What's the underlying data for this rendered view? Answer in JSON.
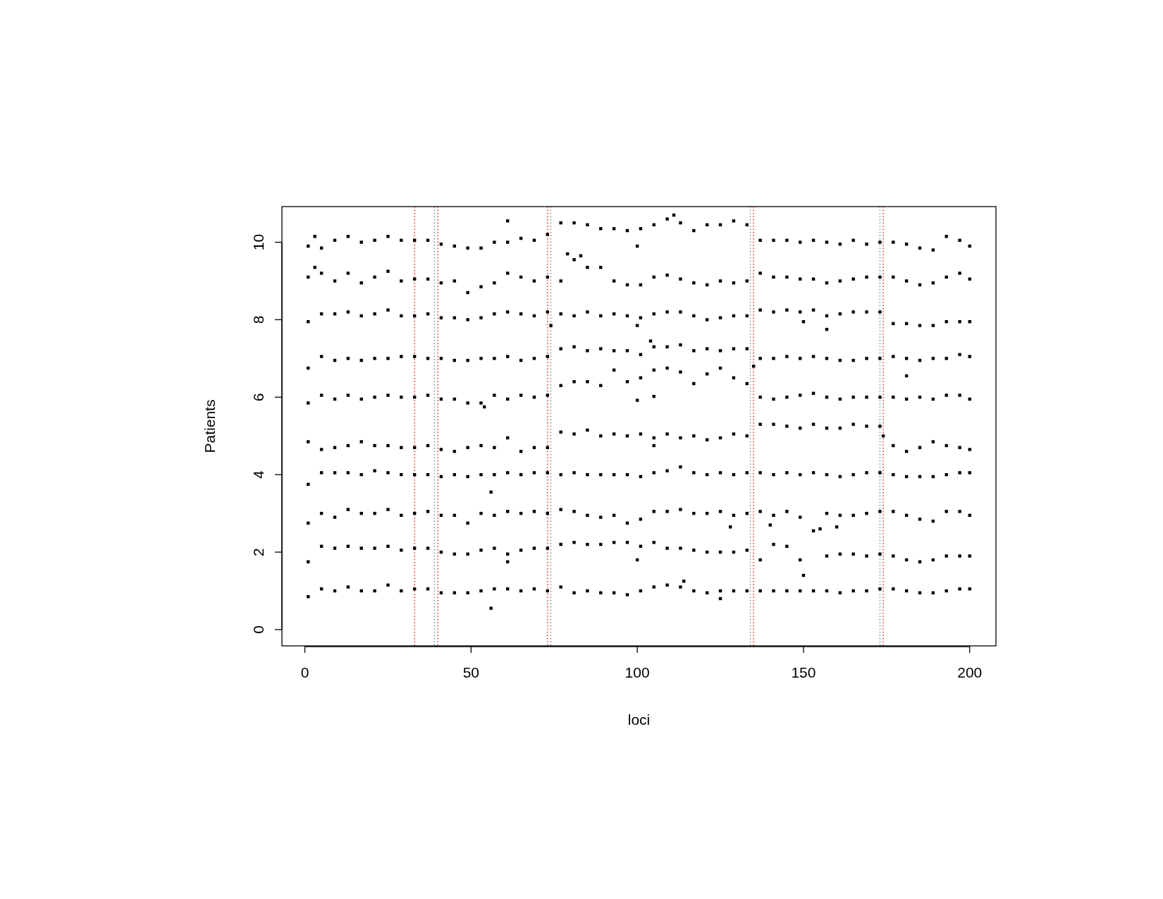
{
  "chart_data": {
    "type": "scatter",
    "xlabel": "loci",
    "ylabel": "Patients",
    "x": [
      1,
      5,
      9,
      13,
      17,
      21,
      25,
      29,
      33,
      37,
      41,
      45,
      49,
      53,
      57,
      61,
      65,
      69,
      73,
      77,
      81,
      85,
      89,
      93,
      97,
      101,
      105,
      109,
      113,
      117,
      121,
      125,
      129,
      133,
      137,
      141,
      145,
      149,
      153,
      157,
      161,
      165,
      169,
      173,
      177,
      181,
      185,
      189,
      193,
      197,
      200
    ],
    "series": [
      {
        "color": "#000000",
        "values": [
          9.9,
          9.85,
          10.05,
          10.15,
          10.0,
          10.05,
          10.15,
          10.05,
          10.05,
          10.05,
          9.95,
          9.9,
          9.85,
          9.85,
          10.0,
          10.0,
          10.1,
          10.05,
          10.2,
          10.5,
          10.5,
          10.45,
          10.35,
          10.35,
          10.3,
          10.35,
          10.45,
          10.6,
          10.5,
          10.3,
          10.45,
          10.45,
          10.55,
          10.45,
          10.05,
          10.05,
          10.05,
          10.0,
          10.05,
          10.0,
          9.95,
          10.05,
          9.95,
          10.0,
          10.0,
          9.95,
          9.85,
          9.8,
          10.15,
          10.05,
          9.9
        ]
      },
      {
        "color": "#000000",
        "values": [
          9.1,
          9.2,
          9.0,
          9.2,
          8.95,
          9.1,
          9.25,
          9.0,
          9.05,
          9.05,
          8.95,
          9.0,
          8.7,
          8.85,
          8.95,
          9.2,
          9.1,
          9.0,
          9.1,
          9.0,
          9.55,
          9.35,
          9.35,
          9.0,
          8.9,
          8.9,
          9.1,
          9.15,
          9.05,
          8.95,
          8.9,
          9.0,
          8.95,
          9.0,
          9.2,
          9.1,
          9.1,
          9.05,
          9.05,
          8.95,
          9.0,
          9.05,
          9.1,
          9.1,
          9.1,
          9.0,
          8.9,
          8.95,
          9.1,
          9.2,
          9.05
        ]
      },
      {
        "color": "#000000",
        "values": [
          7.95,
          8.15,
          8.15,
          8.2,
          8.1,
          8.15,
          8.25,
          8.1,
          8.1,
          8.15,
          8.05,
          8.05,
          8.0,
          8.05,
          8.15,
          8.2,
          8.15,
          8.1,
          8.2,
          8.15,
          8.1,
          8.2,
          8.1,
          8.15,
          8.1,
          8.05,
          8.15,
          8.2,
          8.2,
          8.1,
          8.0,
          8.05,
          8.1,
          8.1,
          8.25,
          8.2,
          8.25,
          8.2,
          8.25,
          8.1,
          8.15,
          8.2,
          8.2,
          8.2,
          7.9,
          7.9,
          7.85,
          7.85,
          7.95,
          7.95,
          7.95
        ]
      },
      {
        "color": "#000000",
        "values": [
          6.75,
          7.05,
          6.95,
          7.0,
          6.95,
          7.0,
          7.0,
          7.05,
          7.05,
          7.0,
          7.0,
          6.95,
          6.95,
          7.0,
          7.0,
          7.05,
          6.95,
          7.0,
          7.05,
          7.25,
          7.3,
          7.2,
          7.25,
          7.2,
          7.2,
          7.1,
          7.3,
          7.3,
          7.35,
          7.2,
          7.25,
          7.2,
          7.25,
          7.25,
          7.0,
          7.0,
          7.05,
          7.0,
          7.05,
          7.0,
          6.95,
          6.95,
          7.0,
          7.0,
          7.05,
          7.0,
          6.95,
          7.0,
          7.0,
          7.1,
          7.05
        ]
      },
      {
        "color": "#000000",
        "values": [
          5.85,
          6.05,
          5.95,
          6.05,
          5.95,
          6.0,
          6.05,
          6.0,
          6.0,
          6.05,
          5.95,
          5.95,
          5.85,
          5.85,
          6.05,
          5.95,
          6.05,
          6.0,
          6.05,
          6.3,
          6.4,
          6.4,
          6.3,
          6.7,
          6.4,
          6.5,
          6.7,
          6.75,
          6.65,
          6.35,
          6.6,
          6.75,
          6.5,
          6.35,
          6.0,
          5.95,
          6.0,
          6.05,
          6.1,
          6.0,
          5.95,
          6.0,
          6.0,
          6.0,
          6.0,
          5.95,
          6.0,
          5.95,
          6.05,
          6.05,
          5.95
        ]
      },
      {
        "color": "#000000",
        "values": [
          4.85,
          4.65,
          4.7,
          4.75,
          4.85,
          4.75,
          4.75,
          4.7,
          4.7,
          4.75,
          4.65,
          4.6,
          4.7,
          4.75,
          4.7,
          4.95,
          4.6,
          4.7,
          4.7,
          5.1,
          5.05,
          5.15,
          5.0,
          5.05,
          5.0,
          5.05,
          4.95,
          5.05,
          4.95,
          5.0,
          4.9,
          4.95,
          5.05,
          5.0,
          5.3,
          5.3,
          5.25,
          5.2,
          5.3,
          5.2,
          5.2,
          5.3,
          5.25,
          5.25,
          4.75,
          4.6,
          4.7,
          4.85,
          4.75,
          4.7,
          4.65
        ]
      },
      {
        "color": "#000000",
        "values": [
          3.75,
          4.05,
          4.05,
          4.05,
          4.0,
          4.1,
          4.05,
          4.0,
          4.0,
          4.0,
          3.95,
          4.0,
          3.95,
          4.0,
          4.0,
          4.05,
          4.0,
          4.05,
          4.05,
          4.0,
          4.05,
          4.0,
          4.0,
          4.0,
          4.0,
          3.95,
          4.05,
          4.1,
          4.2,
          4.05,
          4.0,
          4.05,
          4.0,
          4.05,
          4.05,
          4.0,
          4.05,
          4.0,
          4.05,
          4.0,
          3.95,
          4.0,
          4.05,
          4.05,
          4.0,
          3.95,
          3.95,
          3.95,
          4.0,
          4.05,
          4.05
        ]
      },
      {
        "color": "#000000",
        "values": [
          2.75,
          3.0,
          2.9,
          3.1,
          3.0,
          3.0,
          3.1,
          2.95,
          3.0,
          3.05,
          2.95,
          2.95,
          2.75,
          3.0,
          2.95,
          3.05,
          3.0,
          3.05,
          3.0,
          3.1,
          3.05,
          2.95,
          2.9,
          2.95,
          2.75,
          2.85,
          3.05,
          3.05,
          3.1,
          3.0,
          3.0,
          3.05,
          2.95,
          3.0,
          3.05,
          2.95,
          3.05,
          2.9,
          2.55,
          3.0,
          2.95,
          2.95,
          3.0,
          3.05,
          3.05,
          2.95,
          2.85,
          2.8,
          3.05,
          3.05,
          2.95
        ]
      },
      {
        "color": "#000000",
        "values": [
          1.75,
          2.15,
          2.1,
          2.15,
          2.1,
          2.1,
          2.15,
          2.05,
          2.1,
          2.1,
          2.0,
          1.95,
          1.95,
          2.05,
          2.1,
          1.95,
          2.05,
          2.1,
          2.1,
          2.2,
          2.25,
          2.2,
          2.2,
          2.25,
          2.25,
          2.15,
          2.25,
          2.1,
          2.1,
          2.05,
          2.0,
          2.0,
          2.0,
          2.05,
          1.8,
          2.2,
          2.15,
          1.8,
          null,
          1.9,
          1.95,
          1.95,
          1.9,
          1.95,
          1.9,
          1.8,
          1.75,
          1.8,
          1.9,
          1.9,
          1.9
        ]
      },
      {
        "color": "#000000",
        "values": [
          0.85,
          1.05,
          1.0,
          1.1,
          1.0,
          1.0,
          1.15,
          1.0,
          1.05,
          1.05,
          0.95,
          0.95,
          0.95,
          1.0,
          1.05,
          1.05,
          1.0,
          1.05,
          1.0,
          1.1,
          0.95,
          1.0,
          0.95,
          0.95,
          0.9,
          1.0,
          1.1,
          1.15,
          1.1,
          1.0,
          0.95,
          1.0,
          1.0,
          1.0,
          1.0,
          1.0,
          1.0,
          1.0,
          1.0,
          1.0,
          0.95,
          1.0,
          1.0,
          1.05,
          1.05,
          1.0,
          0.95,
          0.95,
          1.0,
          1.05,
          1.05
        ]
      },
      {
        "color": "#000000",
        "x": [
          3,
          61,
          100,
          111,
          3,
          79,
          83,
          74,
          100,
          150,
          157,
          104,
          135,
          181,
          54,
          100,
          105,
          105,
          174,
          56,
          140,
          155,
          160,
          128,
          61,
          100,
          150,
          56,
          114,
          125
        ],
        "values": [
          10.15,
          10.55,
          9.9,
          10.7,
          9.35,
          9.7,
          9.65,
          7.85,
          7.85,
          7.95,
          7.75,
          7.45,
          6.8,
          6.55,
          5.75,
          5.92,
          6.02,
          4.75,
          5.0,
          3.55,
          2.7,
          2.6,
          2.65,
          2.65,
          1.75,
          1.8,
          1.4,
          0.55,
          1.25,
          0.8
        ]
      }
    ],
    "xlim": [
      -6.9,
      207.9
    ],
    "ylim": [
      -0.42,
      10.92
    ],
    "xticks": [
      0,
      50,
      100,
      150,
      200
    ],
    "yticks": [
      0,
      2,
      4,
      6,
      8,
      10
    ],
    "ref_lines": [
      {
        "axis": "x",
        "value": 33,
        "color": "#ff0000",
        "line_style": "dotted"
      },
      {
        "axis": "x",
        "value": 39,
        "color": "#808080",
        "line_style": "dotted"
      },
      {
        "axis": "x",
        "value": 40,
        "color": "#ff0000",
        "line_style": "dotted"
      },
      {
        "axis": "x",
        "value": 73,
        "color": "#ff0000",
        "line_style": "dotted"
      },
      {
        "axis": "x",
        "value": 74,
        "color": "#808080",
        "line_style": "dotted"
      },
      {
        "axis": "x",
        "value": 134,
        "color": "#808080",
        "line_style": "dotted"
      },
      {
        "axis": "x",
        "value": 135,
        "color": "#ff0000",
        "line_style": "dotted"
      },
      {
        "axis": "x",
        "value": 173,
        "color": "#808080",
        "line_style": "dotted"
      },
      {
        "axis": "x",
        "value": 174,
        "color": "#ff0000",
        "line_style": "dotted"
      }
    ],
    "grid": false,
    "marker": "square"
  }
}
